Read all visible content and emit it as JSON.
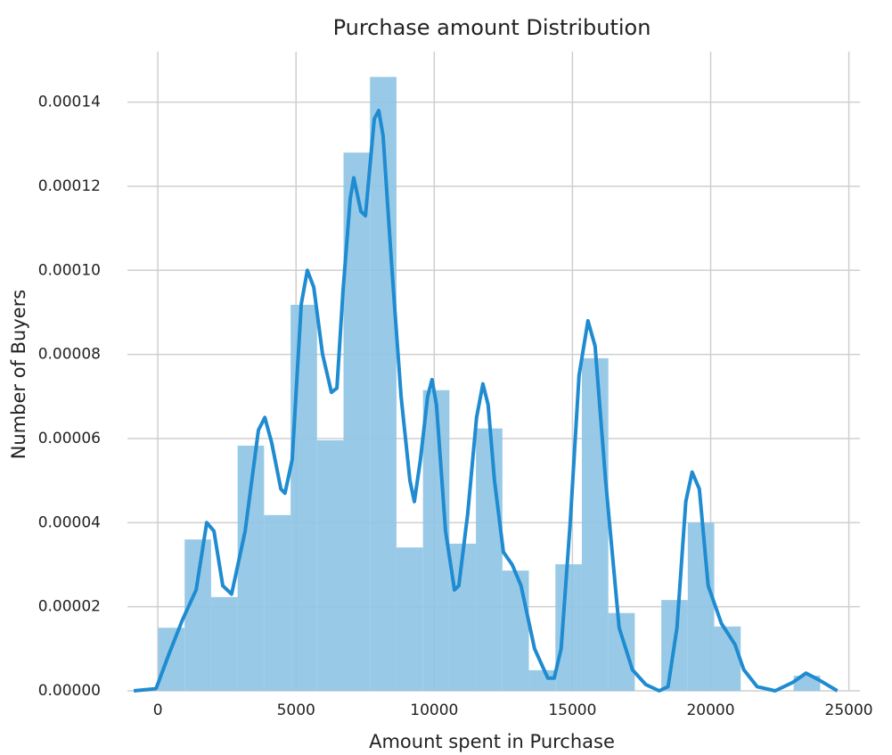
{
  "chart_data": {
    "type": "histogram",
    "title": "Purchase amount Distribution",
    "x_label": "Amount spent in Purchase",
    "y_label": "Number of Buyers",
    "bins": [
      12,
      970,
      1928,
      2886,
      3844,
      4802,
      5760,
      6718,
      7676,
      8634,
      9592,
      10550,
      11508,
      12466,
      13424,
      14382,
      15340,
      16298,
      17256,
      18214,
      19172,
      20130,
      21088,
      22046,
      23004,
      23962
    ],
    "counts": [
      1.5e-05,
      3.6e-05,
      2.23e-05,
      5.83e-05,
      4.18e-05,
      9.18e-05,
      5.96e-05,
      0.000128,
      0.000146,
      3.41e-05,
      7.15e-05,
      3.5e-05,
      6.24e-05,
      2.86e-05,
      4.9e-06,
      3.01e-05,
      7.91e-05,
      1.85e-05,
      0,
      2.16e-05,
      4e-05,
      1.53e-05,
      0,
      0,
      3.6e-06
    ],
    "color": "#8dc4e4",
    "kde": {
      "color": "#1f8bd0",
      "x": [
        -870,
        -65,
        420,
        900,
        1385,
        1770,
        2030,
        2350,
        2670,
        3160,
        3640,
        3870,
        4120,
        4450,
        4600,
        4860,
        5190,
        5410,
        5640,
        5960,
        6280,
        6480,
        6700,
        6960,
        7090,
        7350,
        7510,
        7830,
        7990,
        8150,
        8470,
        8800,
        9120,
        9280,
        9500,
        9760,
        9920,
        10080,
        10410,
        10730,
        10890,
        11210,
        11530,
        11760,
        11950,
        12180,
        12500,
        12820,
        13140,
        13630,
        14110,
        14340,
        14590,
        14920,
        15240,
        15560,
        15820,
        16200,
        16690,
        17170,
        17650,
        18140,
        18460,
        18780,
        19100,
        19330,
        19590,
        19910,
        20390,
        20880,
        21200,
        21680,
        22330,
        22970,
        23450,
        23940,
        24580
      ],
      "values": [
        0,
        5e-07,
        9e-06,
        1.7e-05,
        2.4e-05,
        4e-05,
        3.8e-05,
        2.5e-05,
        2.3e-05,
        3.8e-05,
        6.2e-05,
        6.5e-05,
        5.9e-05,
        4.8e-05,
        4.7e-05,
        5.5e-05,
        9.2e-05,
        0.0001,
        9.6e-05,
        8e-05,
        7.1e-05,
        7.2e-05,
        9.5e-05,
        0.000117,
        0.000122,
        0.000114,
        0.000113,
        0.000136,
        0.000138,
        0.000132,
        0.0001,
        7e-05,
        5e-05,
        4.5e-05,
        5.5e-05,
        7e-05,
        7.4e-05,
        6.8e-05,
        3.8e-05,
        2.4e-05,
        2.5e-05,
        4.2e-05,
        6.5e-05,
        7.3e-05,
        6.8e-05,
        5e-05,
        3.3e-05,
        3e-05,
        2.5e-05,
        1e-05,
        3e-06,
        3e-06,
        1e-05,
        4e-05,
        7.5e-05,
        8.8e-05,
        8.2e-05,
        5e-05,
        1.5e-05,
        5e-06,
        1.5e-06,
        0,
        1e-06,
        1.5e-05,
        4.5e-05,
        5.2e-05,
        4.8e-05,
        2.5e-05,
        1.6e-05,
        1.1e-05,
        5e-06,
        1e-06,
        0,
        2e-06,
        4.2e-06,
        2.5e-06,
        0
      ]
    },
    "xlim": [
      -1100,
      25400
    ],
    "ylim": [
      0,
      0.000152
    ],
    "xticks": [
      0,
      5000,
      10000,
      15000,
      20000,
      25000
    ],
    "yticks": [
      {
        "value": 0,
        "label": "0.00000"
      },
      {
        "value": 2e-05,
        "label": "0.00002"
      },
      {
        "value": 4e-05,
        "label": "0.00004"
      },
      {
        "value": 6e-05,
        "label": "0.00006"
      },
      {
        "value": 8e-05,
        "label": "0.00008"
      },
      {
        "value": 0.0001,
        "label": "0.00010"
      },
      {
        "value": 0.00012,
        "label": "0.00012"
      },
      {
        "value": 0.00014,
        "label": "0.00014"
      }
    ],
    "grid": true
  }
}
